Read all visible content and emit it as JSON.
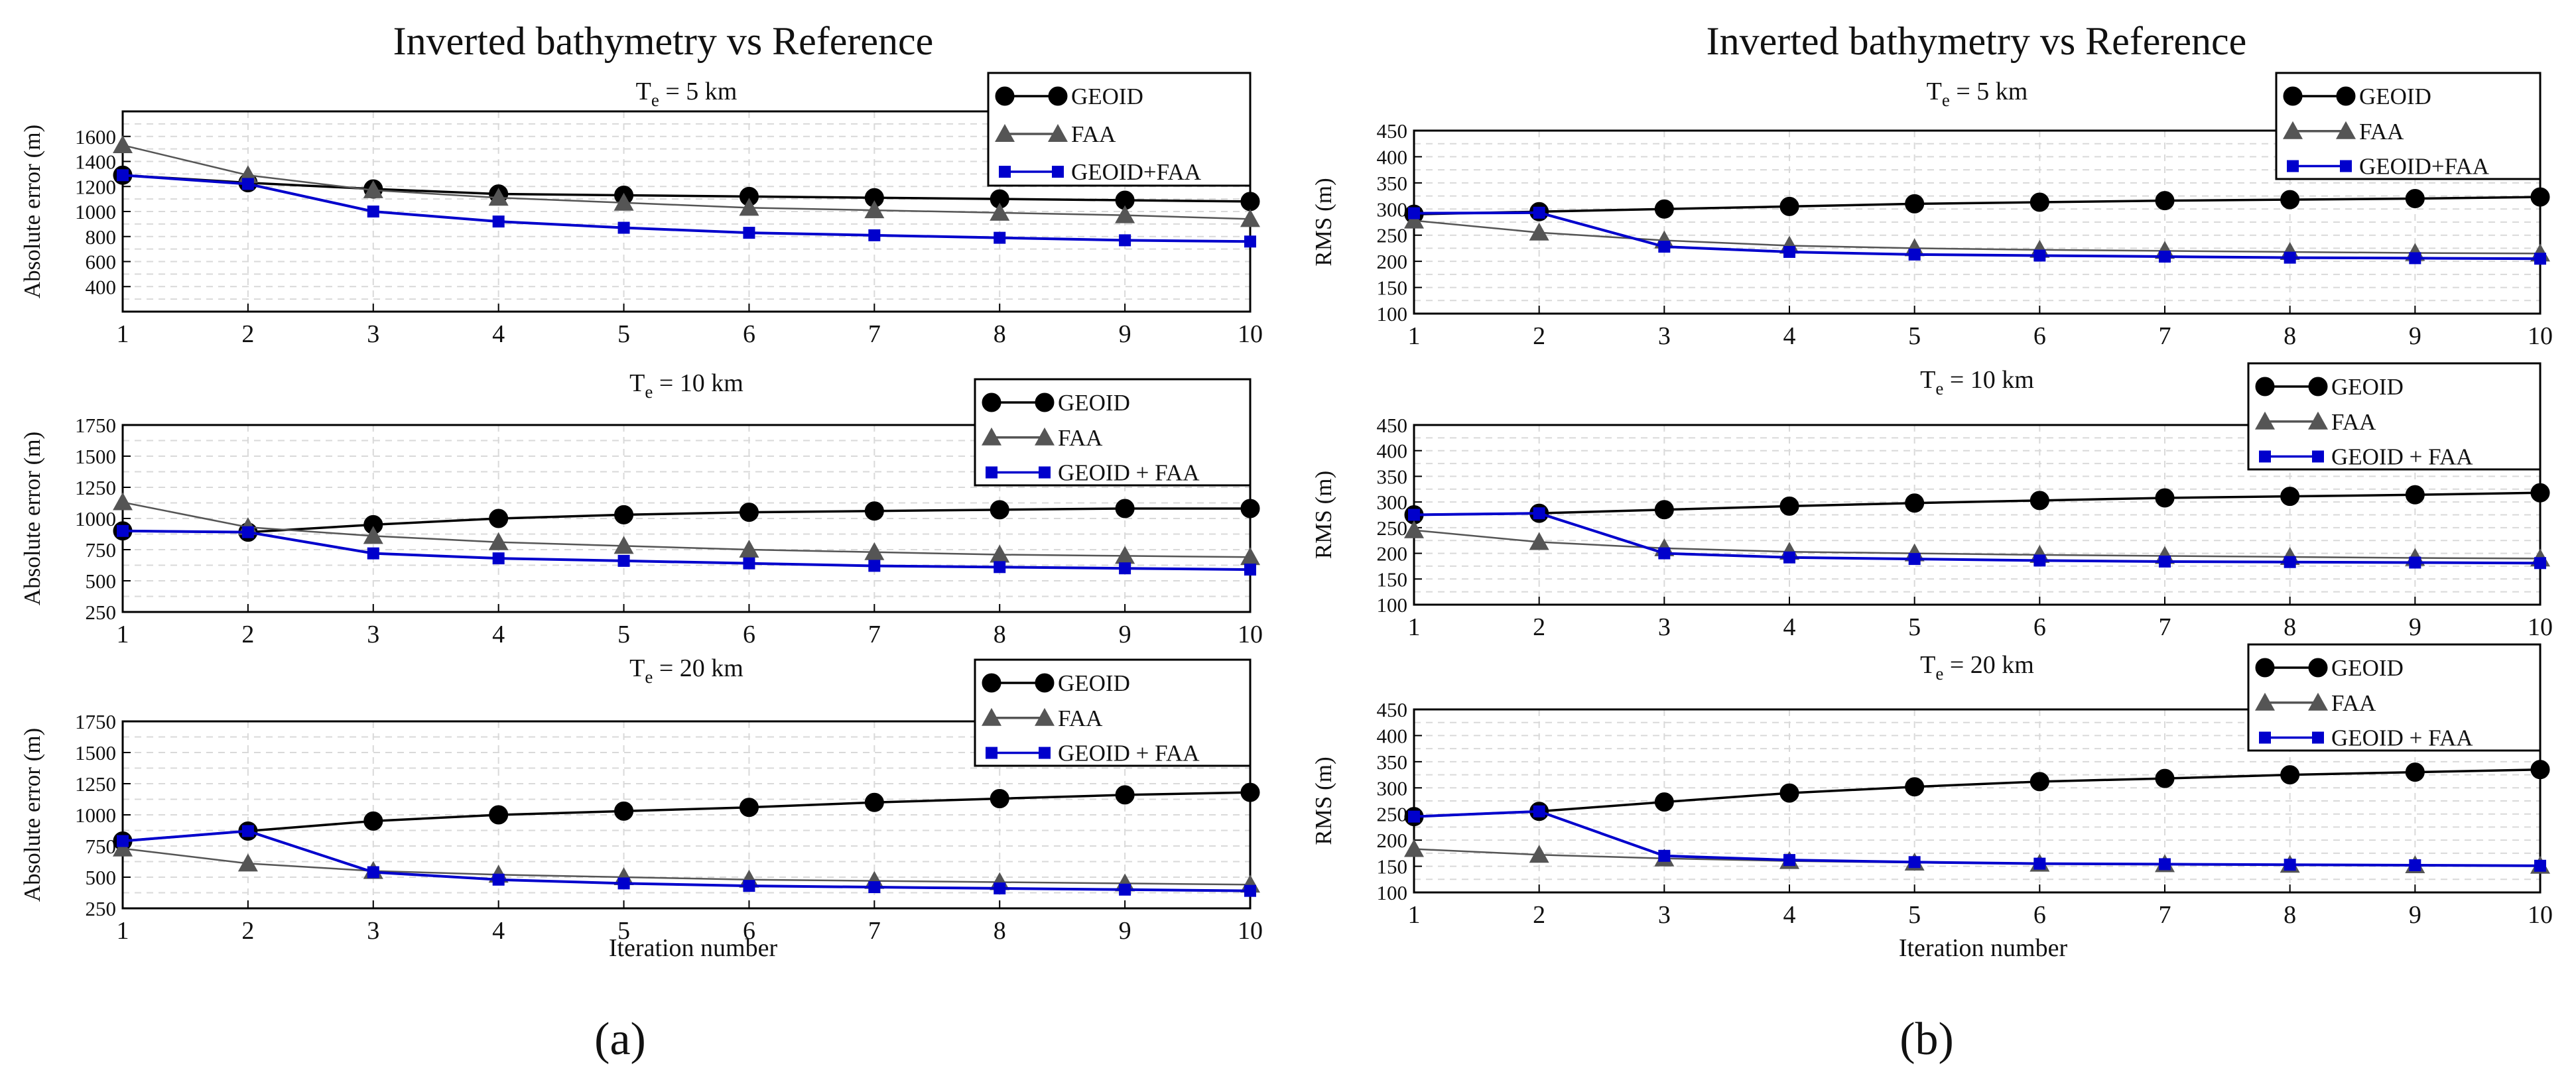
{
  "figure": {
    "panels": [
      {
        "title": "Inverted bathymetry vs Reference",
        "tag": "(a)",
        "xlabel": "Iteration number"
      },
      {
        "title": "Inverted bathymetry vs Reference",
        "tag": "(b)",
        "xlabel": "Iteration number"
      }
    ]
  },
  "colors": {
    "geoid": "#000000",
    "faa": "#555555",
    "combined": "#0000cc",
    "grid": "#d9d9d9",
    "axis": "#000000"
  },
  "chart_data": [
    {
      "type": "line",
      "panel": "a",
      "title": "T_e = 5 km",
      "title_base": "T",
      "title_sub": "e",
      "title_rest": " = 5 km",
      "xlabel": "",
      "ylabel": "Absolute error (m)",
      "x": [
        1,
        2,
        3,
        4,
        5,
        6,
        7,
        8,
        9,
        10
      ],
      "xlim": [
        1,
        10
      ],
      "ylim": [
        200,
        1800
      ],
      "yticks": [
        400,
        600,
        800,
        1000,
        1200,
        1400,
        1600
      ],
      "legend_position": "top-right",
      "grid": true,
      "series": [
        {
          "name": "GEOID",
          "key": "geoid",
          "marker": "circle",
          "values": [
            1290,
            1230,
            1180,
            1140,
            1130,
            1120,
            1110,
            1100,
            1090,
            1080
          ]
        },
        {
          "name": "FAA",
          "key": "faa",
          "marker": "triangle",
          "values": [
            1530,
            1290,
            1170,
            1110,
            1070,
            1030,
            1010,
            990,
            970,
            940
          ]
        },
        {
          "name": "GEOID+FAA",
          "key": "combined",
          "marker": "square",
          "values": [
            1290,
            1220,
            1000,
            920,
            870,
            830,
            810,
            790,
            770,
            760
          ]
        }
      ]
    },
    {
      "type": "line",
      "panel": "a",
      "title": "T_e = 10 km",
      "title_base": "T",
      "title_sub": "e",
      "title_rest": " = 10 km",
      "xlabel": "",
      "ylabel": "Absolute error (m)",
      "x": [
        1,
        2,
        3,
        4,
        5,
        6,
        7,
        8,
        9,
        10
      ],
      "xlim": [
        1,
        10
      ],
      "ylim": [
        250,
        1750
      ],
      "yticks": [
        250,
        500,
        750,
        1000,
        1250,
        1500,
        1750
      ],
      "legend_position": "top-right",
      "grid": true,
      "series": [
        {
          "name": "GEOID",
          "key": "geoid",
          "marker": "circle",
          "values": [
            900,
            890,
            950,
            1000,
            1030,
            1050,
            1060,
            1070,
            1080,
            1080
          ]
        },
        {
          "name": "FAA",
          "key": "faa",
          "marker": "triangle",
          "values": [
            1130,
            930,
            860,
            810,
            780,
            750,
            730,
            710,
            700,
            690
          ]
        },
        {
          "name": "GEOID + FAA",
          "key": "combined",
          "marker": "square",
          "values": [
            900,
            890,
            720,
            680,
            660,
            640,
            620,
            610,
            600,
            590
          ]
        }
      ]
    },
    {
      "type": "line",
      "panel": "a",
      "title": "T_e = 20 km",
      "title_base": "T",
      "title_sub": "e",
      "title_rest": " = 20 km",
      "xlabel": "Iteration number",
      "ylabel": "Absolute error (m)",
      "x": [
        1,
        2,
        3,
        4,
        5,
        6,
        7,
        8,
        9,
        10
      ],
      "xlim": [
        1,
        10
      ],
      "ylim": [
        250,
        1750
      ],
      "yticks": [
        250,
        500,
        750,
        1000,
        1250,
        1500,
        1750
      ],
      "legend_position": "top-right",
      "grid": true,
      "series": [
        {
          "name": "GEOID",
          "key": "geoid",
          "marker": "circle",
          "values": [
            790,
            870,
            950,
            1000,
            1030,
            1060,
            1100,
            1130,
            1160,
            1180
          ]
        },
        {
          "name": "FAA",
          "key": "faa",
          "marker": "triangle",
          "values": [
            730,
            610,
            550,
            520,
            500,
            480,
            470,
            460,
            450,
            440
          ]
        },
        {
          "name": "GEOID + FAA",
          "key": "combined",
          "marker": "square",
          "values": [
            790,
            870,
            540,
            480,
            450,
            430,
            420,
            410,
            400,
            390
          ]
        }
      ]
    },
    {
      "type": "line",
      "panel": "b",
      "title": "T_e = 5 km",
      "title_base": "T",
      "title_sub": "e",
      "title_rest": " = 5 km",
      "xlabel": "",
      "ylabel": "RMS (m)",
      "x": [
        1,
        2,
        3,
        4,
        5,
        6,
        7,
        8,
        9,
        10
      ],
      "xlim": [
        1,
        10
      ],
      "ylim": [
        100,
        450
      ],
      "yticks": [
        100,
        150,
        200,
        250,
        300,
        350,
        400,
        450
      ],
      "legend_position": "top-right",
      "grid": true,
      "series": [
        {
          "name": "GEOID",
          "key": "geoid",
          "marker": "circle",
          "values": [
            290,
            295,
            300,
            305,
            310,
            313,
            316,
            318,
            320,
            323
          ]
        },
        {
          "name": "FAA",
          "key": "faa",
          "marker": "triangle",
          "values": [
            278,
            255,
            240,
            230,
            225,
            222,
            220,
            218,
            216,
            215
          ]
        },
        {
          "name": "GEOID+FAA",
          "key": "combined",
          "marker": "square",
          "values": [
            292,
            293,
            228,
            218,
            213,
            211,
            209,
            207,
            206,
            205
          ]
        }
      ]
    },
    {
      "type": "line",
      "panel": "b",
      "title": "T_e = 10 km",
      "title_base": "T",
      "title_sub": "e",
      "title_rest": " = 10 km",
      "xlabel": "",
      "ylabel": "RMS (m)",
      "x": [
        1,
        2,
        3,
        4,
        5,
        6,
        7,
        8,
        9,
        10
      ],
      "xlim": [
        1,
        10
      ],
      "ylim": [
        100,
        450
      ],
      "yticks": [
        100,
        150,
        200,
        250,
        300,
        350,
        400,
        450
      ],
      "legend_position": "top-right",
      "grid": true,
      "series": [
        {
          "name": "GEOID",
          "key": "geoid",
          "marker": "circle",
          "values": [
            275,
            278,
            285,
            292,
            298,
            303,
            308,
            311,
            314,
            318
          ]
        },
        {
          "name": "FAA",
          "key": "faa",
          "marker": "triangle",
          "values": [
            245,
            222,
            210,
            203,
            200,
            197,
            195,
            193,
            191,
            190
          ]
        },
        {
          "name": "GEOID + FAA",
          "key": "combined",
          "marker": "square",
          "values": [
            275,
            278,
            200,
            192,
            189,
            186,
            184,
            183,
            182,
            181
          ]
        }
      ]
    },
    {
      "type": "line",
      "panel": "b",
      "title": "T_e = 20 km",
      "title_base": "T",
      "title_sub": "e",
      "title_rest": " = 20 km",
      "xlabel": "Iteration number",
      "ylabel": "RMS (m)",
      "x": [
        1,
        2,
        3,
        4,
        5,
        6,
        7,
        8,
        9,
        10
      ],
      "xlim": [
        1,
        10
      ],
      "ylim": [
        100,
        450
      ],
      "yticks": [
        100,
        150,
        200,
        250,
        300,
        350,
        400,
        450
      ],
      "legend_position": "top-right",
      "grid": true,
      "series": [
        {
          "name": "GEOID",
          "key": "geoid",
          "marker": "circle",
          "values": [
            245,
            255,
            273,
            290,
            302,
            312,
            318,
            325,
            330,
            335
          ]
        },
        {
          "name": "FAA",
          "key": "faa",
          "marker": "triangle",
          "values": [
            183,
            172,
            165,
            160,
            157,
            155,
            154,
            153,
            152,
            151
          ]
        },
        {
          "name": "GEOID + FAA",
          "key": "combined",
          "marker": "square",
          "values": [
            245,
            255,
            170,
            162,
            158,
            155,
            154,
            153,
            152,
            151
          ]
        }
      ]
    }
  ]
}
